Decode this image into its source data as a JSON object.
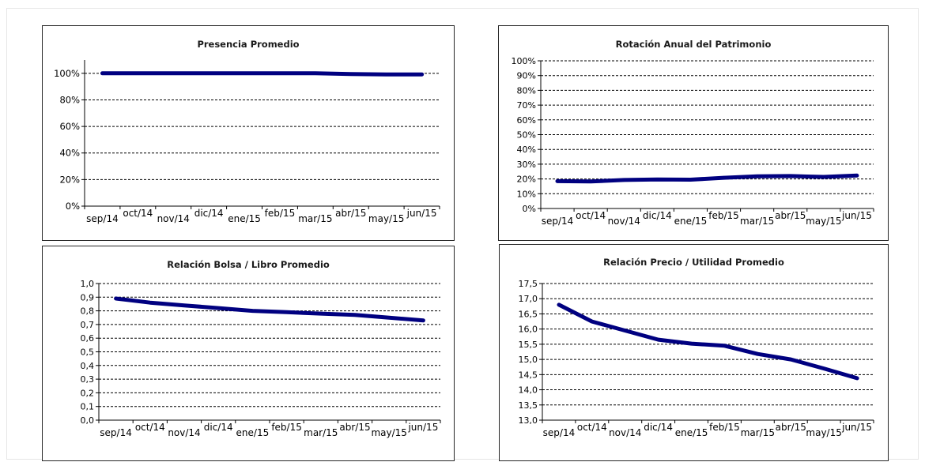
{
  "chart_data": [
    {
      "type": "line",
      "title": "Presencia Promedio",
      "categories": [
        "sep/14",
        "oct/14",
        "nov/14",
        "dic/14",
        "ene/15",
        "feb/15",
        "mar/15",
        "abr/15",
        "may/15",
        "jun/15"
      ],
      "series": [
        {
          "values": [
            100,
            100,
            100,
            100,
            100,
            100,
            100,
            99.5,
            99.2,
            99.2
          ]
        }
      ],
      "ylim": [
        0,
        110
      ],
      "yticks": [
        0,
        20,
        40,
        60,
        80,
        100
      ],
      "ytick_labels": [
        "0%",
        "20%",
        "40%",
        "60%",
        "80%",
        "100%"
      ],
      "grid": true,
      "color": "#000080"
    },
    {
      "type": "line",
      "title": "Rotación Anual del Patrimonio",
      "categories": [
        "sep/14",
        "oct/14",
        "nov/14",
        "dic/14",
        "ene/15",
        "feb/15",
        "mar/15",
        "abr/15",
        "may/15",
        "jun/15"
      ],
      "series": [
        {
          "values": [
            18.5,
            18.3,
            19.3,
            19.7,
            19.5,
            20.8,
            21.8,
            22.0,
            21.4,
            22.3
          ]
        }
      ],
      "ylim": [
        0,
        100
      ],
      "yticks": [
        0,
        10,
        20,
        30,
        40,
        50,
        60,
        70,
        80,
        90,
        100
      ],
      "ytick_labels": [
        "0%",
        "10%",
        "20%",
        "30%",
        "40%",
        "50%",
        "60%",
        "70%",
        "80%",
        "90%",
        "100%"
      ],
      "grid": true,
      "color": "#000080"
    },
    {
      "type": "line",
      "title": "Relación  Bolsa  / Libro  Promedio",
      "categories": [
        "sep/14",
        "oct/14",
        "nov/14",
        "dic/14",
        "ene/15",
        "feb/15",
        "mar/15",
        "abr/15",
        "may/15",
        "jun/15"
      ],
      "series": [
        {
          "values": [
            0.89,
            0.86,
            0.84,
            0.82,
            0.8,
            0.79,
            0.78,
            0.77,
            0.75,
            0.73
          ]
        }
      ],
      "ylim": [
        0,
        1.0
      ],
      "yticks": [
        0,
        0.1,
        0.2,
        0.3,
        0.4,
        0.5,
        0.6,
        0.7,
        0.8,
        0.9,
        1.0
      ],
      "ytick_labels": [
        "0,0",
        "0,1",
        "0,2",
        "0,3",
        "0,4",
        "0,5",
        "0,6",
        "0,7",
        "0,8",
        "0,9",
        "1,0"
      ],
      "grid": true,
      "color": "#000080"
    },
    {
      "type": "line",
      "title": "Relación  Precio  / Utilidad  Promedio",
      "categories": [
        "sep/14",
        "oct/14",
        "nov/14",
        "dic/14",
        "ene/15",
        "feb/15",
        "mar/15",
        "abr/15",
        "may/15",
        "jun/15"
      ],
      "series": [
        {
          "values": [
            16.8,
            16.25,
            15.95,
            15.65,
            15.52,
            15.45,
            15.18,
            15.0,
            14.7,
            14.38
          ]
        }
      ],
      "ylim": [
        13.0,
        17.5
      ],
      "yticks": [
        13.0,
        13.5,
        14.0,
        14.5,
        15.0,
        15.5,
        16.0,
        16.5,
        17.0,
        17.5
      ],
      "ytick_labels": [
        "13,0",
        "13,5",
        "14,0",
        "14,5",
        "15,0",
        "15,5",
        "16,0",
        "16,5",
        "17,0",
        "17,5"
      ],
      "grid": true,
      "color": "#000080"
    }
  ]
}
